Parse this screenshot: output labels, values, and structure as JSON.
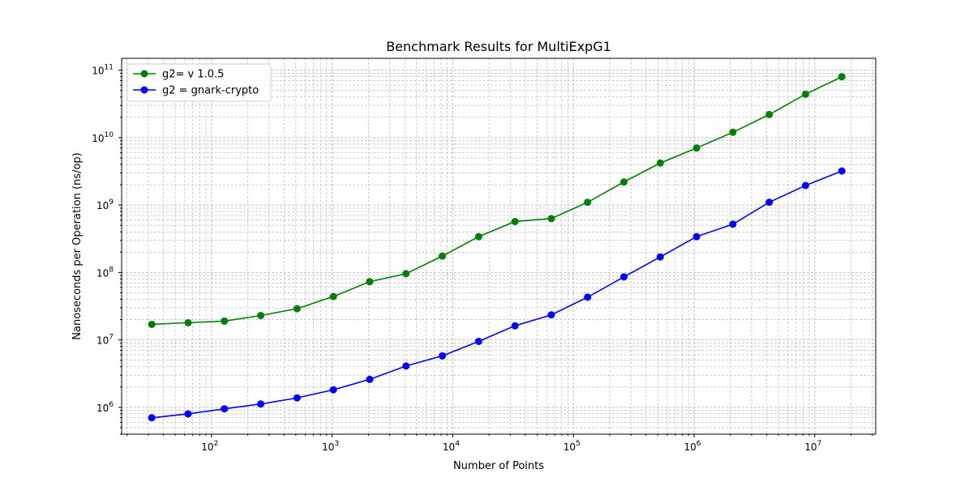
{
  "chart_data": {
    "type": "line",
    "title": "Benchmark Results for MultiExpG1",
    "xlabel": "Number of Points",
    "ylabel": "Nanoseconds per Operation (ns/op)",
    "xscale": "log",
    "yscale": "log",
    "xlim": [
      18,
      32000000
    ],
    "ylim": [
      400000,
      150000000000
    ],
    "x_ticks": [
      {
        "value": 100,
        "base": "10",
        "exp": "2"
      },
      {
        "value": 1000,
        "base": "10",
        "exp": "3"
      },
      {
        "value": 10000,
        "base": "10",
        "exp": "4"
      },
      {
        "value": 100000,
        "base": "10",
        "exp": "5"
      },
      {
        "value": 1000000,
        "base": "10",
        "exp": "6"
      },
      {
        "value": 10000000,
        "base": "10",
        "exp": "7"
      }
    ],
    "y_ticks": [
      {
        "value": 1000000,
        "base": "10",
        "exp": "6"
      },
      {
        "value": 10000000,
        "base": "10",
        "exp": "7"
      },
      {
        "value": 100000000,
        "base": "10",
        "exp": "8"
      },
      {
        "value": 1000000000,
        "base": "10",
        "exp": "9"
      },
      {
        "value": 10000000000,
        "base": "10",
        "exp": "10"
      },
      {
        "value": 100000000000,
        "base": "10",
        "exp": "11"
      }
    ],
    "grid": true,
    "legend_position": "top-left",
    "x": [
      32,
      64,
      128,
      256,
      512,
      1024,
      2048,
      4096,
      8192,
      16384,
      32768,
      65536,
      131072,
      262144,
      524288,
      1048576,
      2097152,
      4194304,
      8388608,
      16777216
    ],
    "series": [
      {
        "name": "g2= v 1.0.5",
        "color": "#008000",
        "values": [
          17000000,
          18000000,
          19000000,
          23000000,
          29000000,
          44000000,
          73000000,
          96000000,
          175000000,
          340000000,
          570000000,
          630000000,
          1100000000,
          2200000000,
          4200000000,
          7000000000,
          12000000000,
          22000000000,
          44000000000,
          80000000000
        ]
      },
      {
        "name": "g2 = gnark-crypto",
        "color": "#0000ff",
        "values": [
          700000,
          800000,
          950000,
          1120000,
          1380000,
          1820000,
          2600000,
          4100000,
          5800000,
          9500000,
          16200000,
          23500000,
          43000000,
          86000000,
          170000000,
          340000000,
          520000000,
          1100000000,
          1950000000,
          3200000000
        ]
      }
    ]
  }
}
